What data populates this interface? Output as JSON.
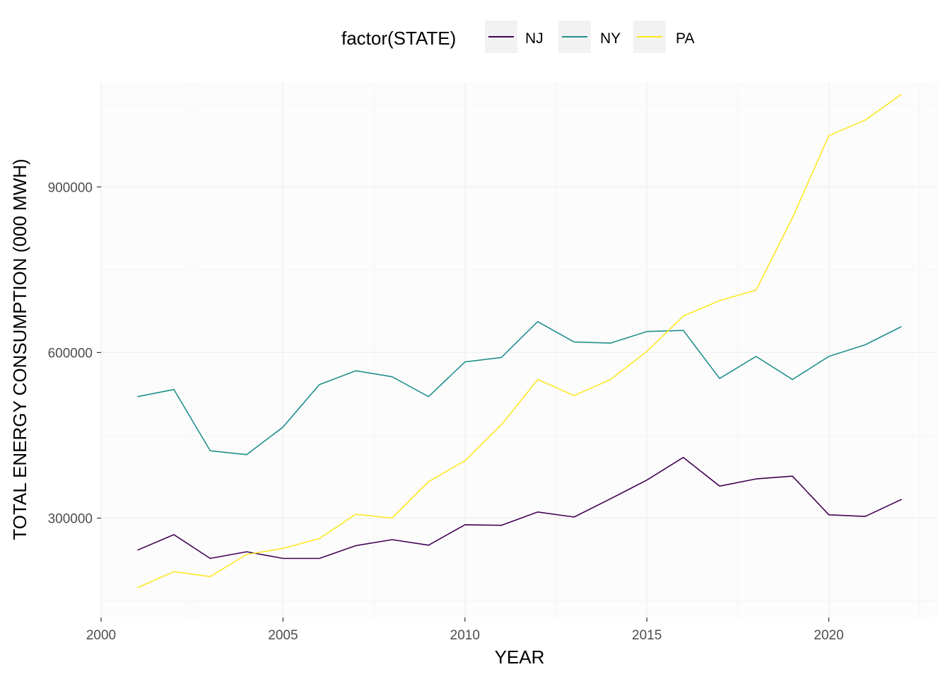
{
  "chart_data": {
    "type": "line",
    "title": "",
    "xlabel": "YEAR",
    "ylabel": "TOTAL ENERGY CONSUMPTION (000 MWH)",
    "xlim": [
      2000,
      2023
    ],
    "ylim": [
      120000,
      1090000
    ],
    "x_ticks": [
      2000,
      2005,
      2010,
      2015,
      2020
    ],
    "y_ticks": [
      300000,
      600000,
      900000
    ],
    "grid": true,
    "legend": {
      "title": "factor(STATE)",
      "position": "top"
    },
    "x": [
      2001,
      2002,
      2003,
      2004,
      2005,
      2006,
      2007,
      2008,
      2009,
      2010,
      2011,
      2012,
      2013,
      2014,
      2015,
      2016,
      2017,
      2018,
      2019,
      2020,
      2021,
      2022
    ],
    "series": [
      {
        "name": "NJ",
        "color": "#440154",
        "values": [
          242000,
          270000,
          227000,
          239000,
          227000,
          227000,
          250000,
          261000,
          251000,
          288000,
          287000,
          311000,
          302000,
          335000,
          369000,
          410000,
          358000,
          371000,
          376000,
          306000,
          303000,
          334000
        ]
      },
      {
        "name": "NY",
        "color": "#21908C",
        "values": [
          520000,
          533000,
          422000,
          415000,
          465000,
          542000,
          567000,
          556000,
          520000,
          583000,
          591000,
          656000,
          619000,
          617000,
          638000,
          640000,
          553000,
          593000,
          551000,
          593000,
          614000,
          647000
        ]
      },
      {
        "name": "PA",
        "color": "#FDE725",
        "values": [
          174000,
          203000,
          194000,
          234000,
          245000,
          263000,
          307000,
          300000,
          366000,
          404000,
          469000,
          551000,
          522000,
          551000,
          602000,
          666000,
          694000,
          713000,
          844000,
          993000,
          1021000,
          1068000
        ]
      }
    ]
  }
}
